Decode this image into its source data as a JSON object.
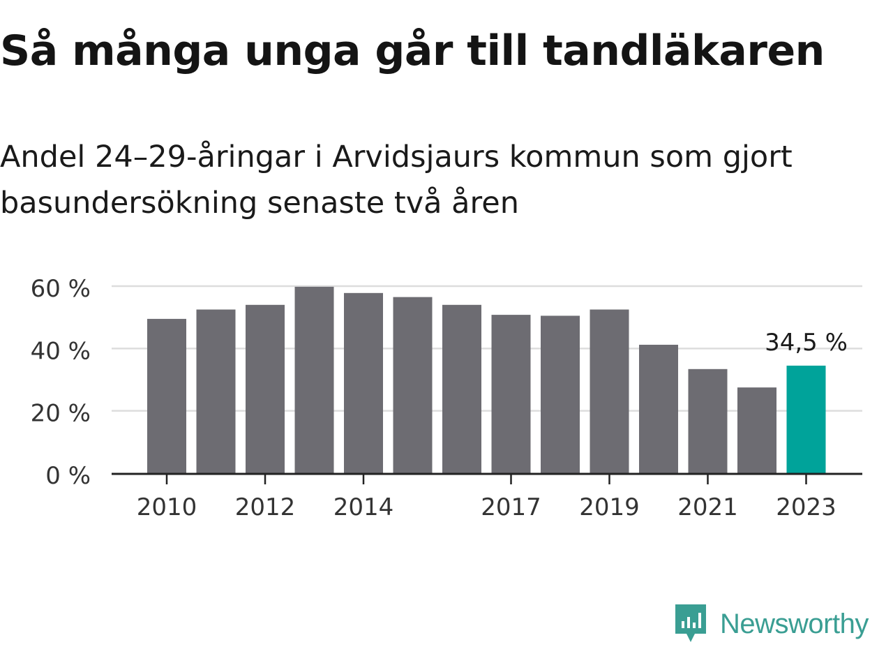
{
  "header": {
    "title": "Så många unga går till tandläkaren",
    "subtitle": "Andel 24–29-åringar i Arvidsjaurs kommun som gjort basundersökning senaste två åren"
  },
  "brand": {
    "name": "Newsworthy",
    "icon": "newsworthy-logo-icon",
    "color": "#3a9e93"
  },
  "chart_data": {
    "type": "bar",
    "categories": [
      "2010",
      "2011",
      "2012",
      "2013",
      "2014",
      "2015",
      "2016",
      "2017",
      "2018",
      "2019",
      "2020",
      "2021",
      "2022",
      "2023"
    ],
    "values": [
      49.5,
      52.5,
      54,
      59.8,
      57.8,
      56.5,
      54,
      50.8,
      50.5,
      52.5,
      41.2,
      33.4,
      27.5,
      34.5
    ],
    "x_tick_labels": [
      "2010",
      "2012",
      "2014",
      "2017",
      "2019",
      "2021",
      "2023"
    ],
    "y_ticks": [
      0,
      20,
      40,
      60
    ],
    "y_tick_labels": [
      "0 %",
      "20 %",
      "40 %",
      "60 %"
    ],
    "ylim": [
      0,
      60
    ],
    "grid": true,
    "annotation": {
      "category": "2023",
      "label": "34,5 %"
    },
    "colors": {
      "bar": "#6d6c72",
      "highlight": "#00a39a",
      "grid": "#dddddd",
      "axis": "#222222"
    }
  }
}
